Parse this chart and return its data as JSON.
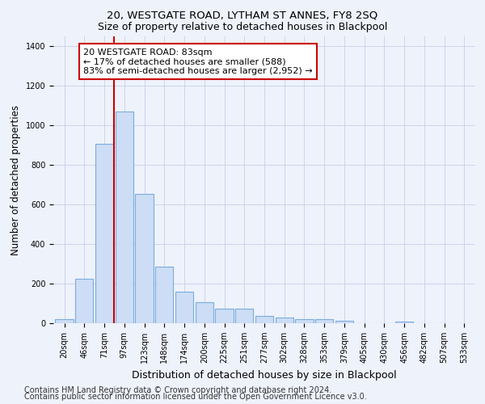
{
  "title": "20, WESTGATE ROAD, LYTHAM ST ANNES, FY8 2SQ",
  "subtitle": "Size of property relative to detached houses in Blackpool",
  "xlabel": "Distribution of detached houses by size in Blackpool",
  "ylabel": "Number of detached properties",
  "categories": [
    "20sqm",
    "46sqm",
    "71sqm",
    "97sqm",
    "123sqm",
    "148sqm",
    "174sqm",
    "200sqm",
    "225sqm",
    "251sqm",
    "277sqm",
    "302sqm",
    "328sqm",
    "353sqm",
    "379sqm",
    "405sqm",
    "430sqm",
    "456sqm",
    "482sqm",
    "507sqm",
    "533sqm"
  ],
  "values": [
    20,
    225,
    905,
    1070,
    655,
    285,
    160,
    108,
    73,
    73,
    37,
    27,
    20,
    20,
    12,
    0,
    0,
    10,
    0,
    0,
    0
  ],
  "bar_color": "#ccddf5",
  "bar_edge_color": "#7aacdd",
  "vline_color": "#cc0000",
  "vline_x_index": 2.5,
  "ylim": [
    0,
    1450
  ],
  "annotation_text": "20 WESTGATE ROAD: 83sqm\n← 17% of detached houses are smaller (588)\n83% of semi-detached houses are larger (2,952) →",
  "annotation_box_color": "#ffffff",
  "annotation_box_edge": "#cc0000",
  "footer1": "Contains HM Land Registry data © Crown copyright and database right 2024.",
  "footer2": "Contains public sector information licensed under the Open Government Licence v3.0.",
  "background_color": "#eef2fb",
  "title_fontsize": 9.5,
  "subtitle_fontsize": 9,
  "tick_fontsize": 7,
  "ylabel_fontsize": 8.5,
  "xlabel_fontsize": 9,
  "annotation_fontsize": 8,
  "footer_fontsize": 7
}
